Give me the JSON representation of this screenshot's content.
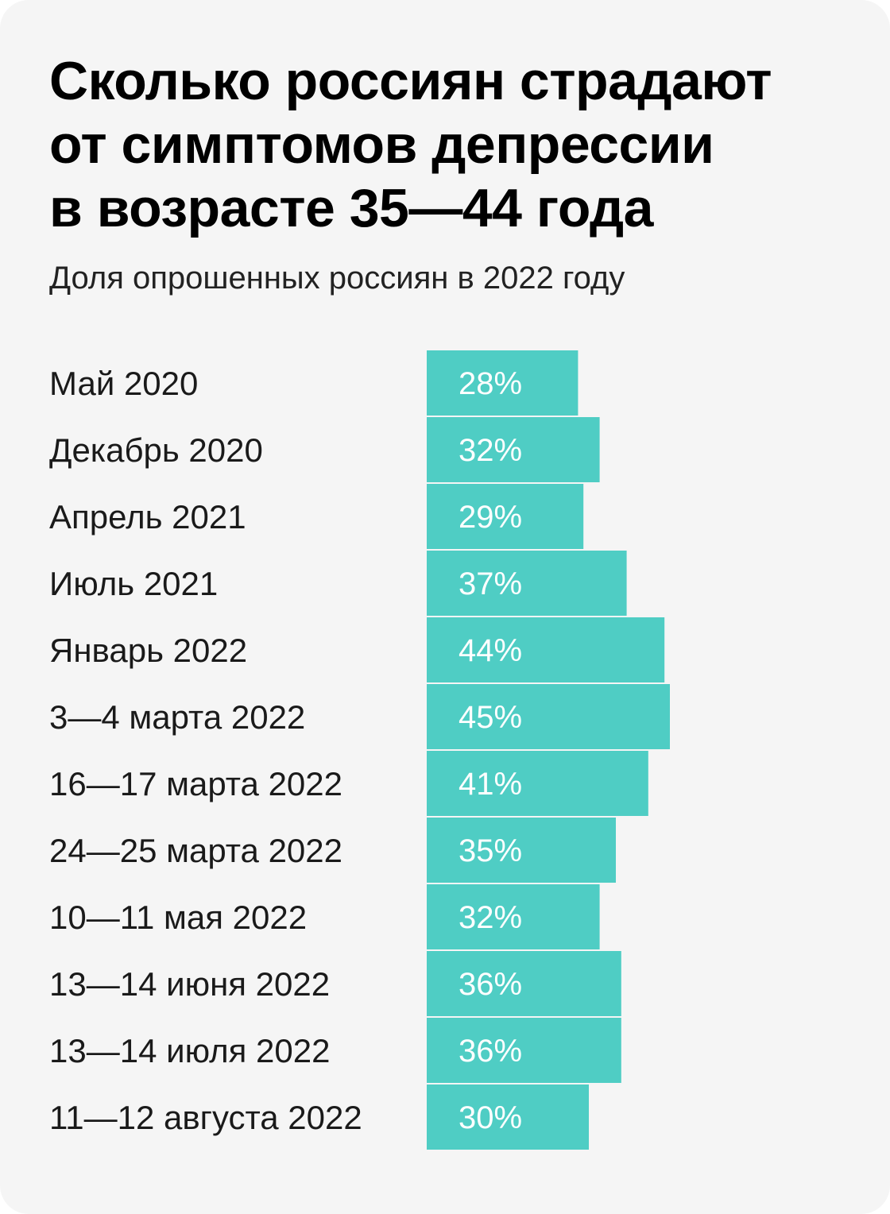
{
  "title": "Сколько россиян страдают\nот симптомов депрессии\nв возрасте 35—44 года",
  "subtitle": "Доля опрошенных россиян в 2022 году",
  "colors": {
    "bar": "#4fcdc4",
    "background": "#f5f5f5",
    "text": "#1a1a1a",
    "value_text": "#ffffff"
  },
  "chart_data": {
    "type": "bar",
    "orientation": "horizontal",
    "title": "Сколько россиян страдают от симптомов депрессии в возрасте 35—44 года",
    "subtitle": "Доля опрошенных россиян в 2022 году",
    "categories": [
      "Май 2020",
      "Декабрь 2020",
      "Апрель 2021",
      "Июль 2021",
      "Январь 2022",
      "3—4 марта 2022",
      "16—17 марта 2022",
      "24—25 марта 2022",
      "10—11 мая 2022",
      "13—14 июня 2022",
      "13—14 июля 2022",
      "11—12 августа 2022"
    ],
    "values": [
      28,
      32,
      29,
      37,
      44,
      45,
      41,
      35,
      32,
      36,
      36,
      30
    ],
    "value_labels": [
      "28%",
      "32%",
      "29%",
      "37%",
      "44%",
      "45%",
      "41%",
      "35%",
      "32%",
      "36%",
      "36%",
      "30%"
    ],
    "unit": "%",
    "grid": false,
    "legend": "none"
  }
}
